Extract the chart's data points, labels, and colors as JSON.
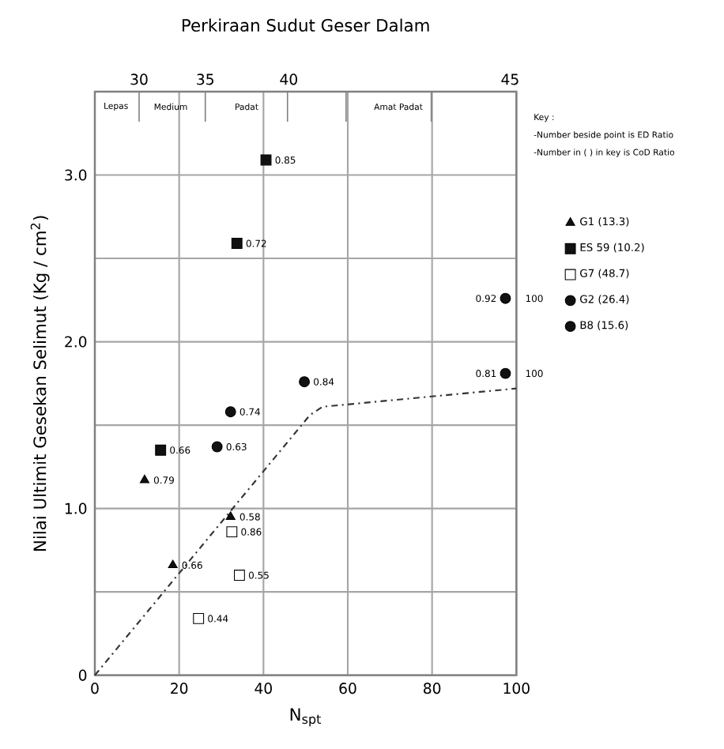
{
  "chart_data": {
    "type": "scatter",
    "x2label": "Perkiraan Sudut Geser Dalam",
    "xlabel": "N$_{spt}$",
    "ylabel": "Nilai Ultimit Gesekan Selimut (Kg / cm$^{2}$)",
    "xlim": [
      0,
      100
    ],
    "ylim": [
      0,
      3.5
    ],
    "xticks": [
      0,
      20,
      40,
      60,
      80,
      100
    ],
    "yticks": [
      0,
      {
        "value": 0.5,
        "label": null
      },
      {
        "value": 1,
        "label": "1.0"
      },
      {
        "value": 1.5,
        "label": null
      },
      {
        "value": 2,
        "label": "2.0"
      },
      {
        "value": 2.5,
        "label": null
      },
      {
        "value": 3,
        "label": "3.0"
      }
    ],
    "grid": true,
    "legend": "right",
    "annotations": [
      "Key :",
      "-Number beside point is ED Ratio",
      "-Number in ( ) in key is CoD Ratio",
      "30",
      "35",
      "40",
      "45",
      "Lepas",
      "Medium",
      "Padat",
      "Amat Padat",
      {
        "text": "0.79",
        "x": 11.8,
        "y": 1.17
      },
      {
        "text": "0.66",
        "x": 18.5,
        "y": 0.66
      },
      {
        "text": "0.58",
        "x": 32.2,
        "y": 0.95
      },
      {
        "text": "0.85",
        "x": 40.6,
        "y": 3.09
      },
      {
        "text": "0.72",
        "x": 33.7,
        "y": 2.59
      },
      {
        "text": "0.66",
        "x": 15.6,
        "y": 1.35
      },
      {
        "text": "0.86",
        "x": 32.5,
        "y": 0.86
      },
      {
        "text": "0.55",
        "x": 34.3,
        "y": 0.6
      },
      {
        "text": "0.44",
        "x": 24.6,
        "y": 0.34
      },
      {
        "text": "0.74",
        "x": 32.2,
        "y": 1.58
      },
      {
        "text": "0.63",
        "x": 29.0,
        "y": 1.37
      },
      {
        "text": "0.84",
        "x": 49.7,
        "y": 1.76
      },
      {
        "text": "0.92",
        "x": 97.4,
        "y": 2.26
      },
      {
        "text": "0.81",
        "x": 97.4,
        "y": 1.81
      },
      {
        "text": "100",
        "x": 100,
        "y": 2.26
      },
      {
        "text": "100",
        "x": 100,
        "y": 1.81
      }
    ],
    "series": [
      {
        "name": "G1 (13.3)",
        "marker": "triangle",
        "color": "#111111",
        "x": [
          11.8,
          18.5,
          32.2
        ],
        "values": [
          1.17,
          0.66,
          0.95
        ]
      },
      {
        "name": "ES 59 (10.2)",
        "marker": "square",
        "color": "#111111",
        "x": [
          40.6,
          33.7,
          15.6
        ],
        "values": [
          3.09,
          2.59,
          1.35
        ]
      },
      {
        "name": "G7 (48.7)",
        "marker": "square",
        "color": "#ffffff",
        "x": [
          32.5,
          34.3,
          24.6
        ],
        "values": [
          0.86,
          0.6,
          0.34
        ]
      },
      {
        "name": "G2 (26.4)",
        "marker": "circle",
        "color": "#111111",
        "x": [
          32.2,
          29.0,
          49.7
        ],
        "values": [
          1.58,
          1.37,
          1.76
        ]
      },
      {
        "name": "B8 (15.6)",
        "marker": "circle",
        "color": "#111111",
        "x": [
          97.4,
          97.4
        ],
        "values": [
          2.26,
          1.81
        ]
      },
      {
        "type": "line",
        "marker": "none",
        "line_style": "dashdot",
        "color": "#333333",
        "x": [
          0,
          51,
          54,
          100
        ],
        "values": [
          0,
          1.56,
          1.61,
          1.72
        ]
      }
    ]
  }
}
